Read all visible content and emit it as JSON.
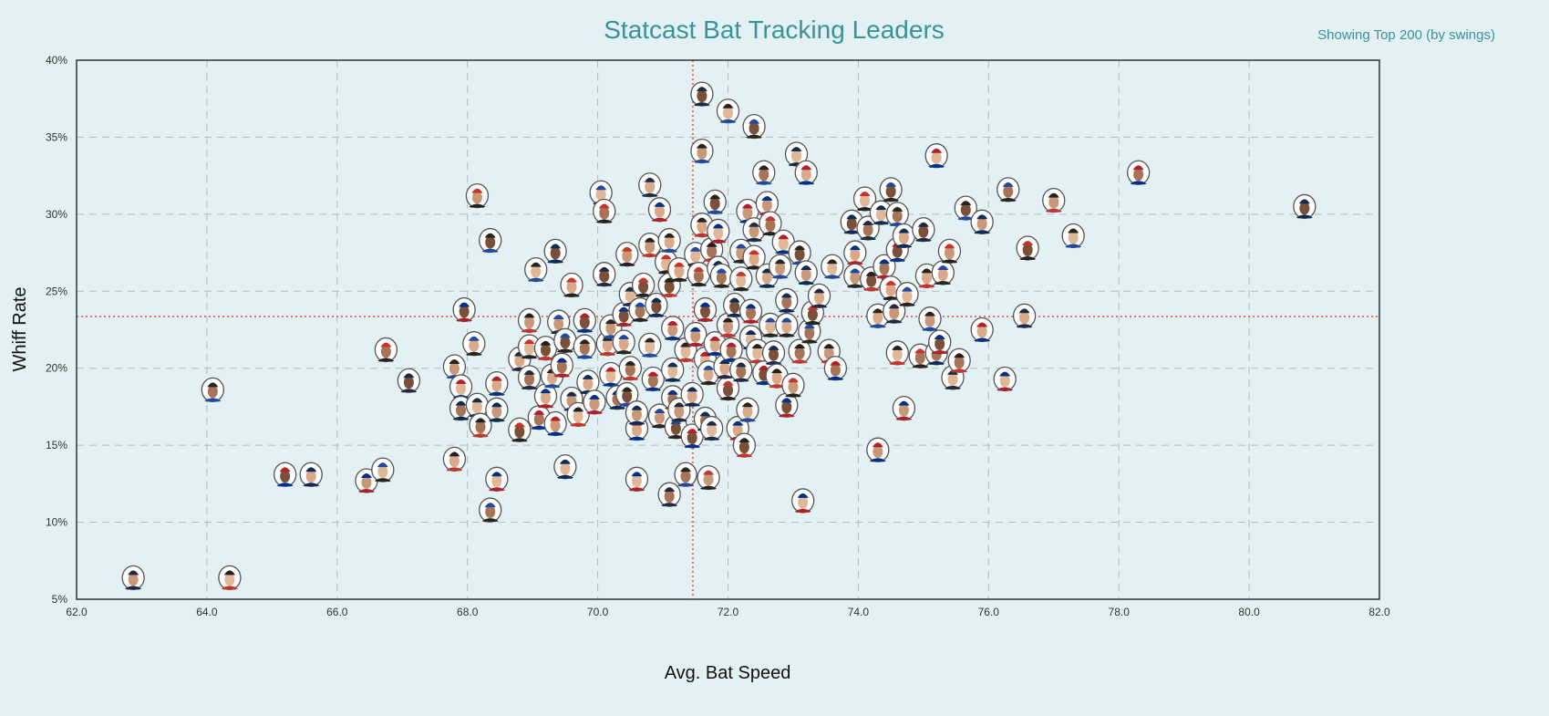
{
  "chart_data": {
    "type": "scatter",
    "title": "Statcast Bat Tracking Leaders",
    "subtitle": "Showing Top 200 (by swings)",
    "xlabel": "Avg. Bat Speed",
    "ylabel": "Whiff Rate",
    "xlim": [
      62,
      82
    ],
    "ylim": [
      5,
      40
    ],
    "x_ticks": [
      "62.0",
      "64.0",
      "66.0",
      "68.0",
      "70.0",
      "72.0",
      "74.0",
      "76.0",
      "78.0",
      "80.0",
      "82.0"
    ],
    "y_ticks": [
      "5%",
      "10%",
      "15%",
      "20%",
      "25%",
      "30%",
      "35%",
      "40%"
    ],
    "grid": true,
    "reference_lines": {
      "x_mean": 71.46,
      "y_mean": 23.36,
      "color": "#f07070",
      "style": "dotted"
    },
    "marker": "player-headshot",
    "points": [
      [
        62.87,
        6.4
      ],
      [
        64.35,
        6.4
      ],
      [
        64.09,
        18.6
      ],
      [
        65.2,
        13.1
      ],
      [
        65.6,
        13.1
      ],
      [
        66.45,
        12.7
      ],
      [
        66.7,
        13.4
      ],
      [
        66.75,
        21.2
      ],
      [
        67.1,
        19.2
      ],
      [
        67.8,
        14.1
      ],
      [
        67.8,
        20.1
      ],
      [
        67.9,
        18.8
      ],
      [
        67.9,
        17.4
      ],
      [
        67.95,
        23.8
      ],
      [
        68.1,
        21.6
      ],
      [
        68.15,
        31.2
      ],
      [
        68.15,
        17.6
      ],
      [
        68.2,
        16.3
      ],
      [
        68.35,
        28.3
      ],
      [
        68.45,
        19.0
      ],
      [
        68.45,
        17.3
      ],
      [
        68.45,
        12.8
      ],
      [
        68.35,
        10.8
      ],
      [
        68.8,
        16.0
      ],
      [
        68.8,
        20.6
      ],
      [
        68.95,
        23.1
      ],
      [
        69.05,
        26.4
      ],
      [
        69.1,
        16.8
      ],
      [
        69.35,
        27.6
      ],
      [
        69.2,
        18.2
      ],
      [
        69.4,
        23.0
      ],
      [
        68.95,
        21.4
      ],
      [
        68.95,
        19.4
      ],
      [
        69.2,
        21.3
      ],
      [
        69.3,
        19.5
      ],
      [
        69.35,
        16.4
      ],
      [
        69.5,
        13.6
      ],
      [
        69.45,
        20.2
      ],
      [
        69.5,
        21.8
      ],
      [
        69.6,
        25.4
      ],
      [
        69.6,
        18.0
      ],
      [
        69.7,
        17.0
      ],
      [
        69.8,
        21.4
      ],
      [
        69.8,
        23.1
      ],
      [
        69.85,
        19.1
      ],
      [
        69.95,
        17.8
      ],
      [
        70.05,
        31.4
      ],
      [
        70.1,
        30.2
      ],
      [
        70.1,
        26.1
      ],
      [
        70.15,
        21.6
      ],
      [
        70.2,
        22.7
      ],
      [
        70.2,
        19.6
      ],
      [
        70.3,
        18.1
      ],
      [
        70.4,
        23.5
      ],
      [
        70.4,
        21.7
      ],
      [
        70.45,
        27.4
      ],
      [
        70.5,
        24.8
      ],
      [
        70.5,
        20.0
      ],
      [
        70.45,
        18.3
      ],
      [
        70.6,
        16.1
      ],
      [
        70.6,
        17.1
      ],
      [
        70.6,
        12.8
      ],
      [
        70.65,
        23.8
      ],
      [
        70.7,
        25.4
      ],
      [
        70.8,
        31.9
      ],
      [
        70.8,
        28.0
      ],
      [
        70.8,
        21.5
      ],
      [
        70.85,
        19.3
      ],
      [
        70.9,
        24.1
      ],
      [
        70.95,
        30.3
      ],
      [
        70.95,
        16.9
      ],
      [
        71.05,
        26.9
      ],
      [
        71.1,
        11.8
      ],
      [
        71.1,
        25.4
      ],
      [
        71.1,
        28.3
      ],
      [
        71.15,
        22.6
      ],
      [
        71.15,
        19.9
      ],
      [
        71.15,
        18.1
      ],
      [
        71.2,
        16.2
      ],
      [
        71.25,
        26.4
      ],
      [
        71.25,
        17.3
      ],
      [
        71.35,
        21.2
      ],
      [
        71.35,
        13.1
      ],
      [
        71.45,
        15.6
      ],
      [
        71.45,
        18.3
      ],
      [
        71.5,
        22.2
      ],
      [
        71.5,
        27.4
      ],
      [
        71.55,
        26.1
      ],
      [
        71.6,
        37.8
      ],
      [
        71.6,
        29.3
      ],
      [
        71.6,
        34.1
      ],
      [
        71.65,
        20.6
      ],
      [
        71.65,
        16.7
      ],
      [
        71.65,
        23.8
      ],
      [
        71.7,
        19.7
      ],
      [
        71.7,
        12.9
      ],
      [
        71.75,
        16.1
      ],
      [
        71.75,
        27.7
      ],
      [
        71.8,
        30.8
      ],
      [
        71.8,
        21.6
      ],
      [
        71.85,
        26.5
      ],
      [
        71.85,
        28.9
      ],
      [
        71.9,
        26.0
      ],
      [
        72.0,
        18.7
      ],
      [
        71.95,
        20.1
      ],
      [
        72.0,
        22.8
      ],
      [
        72.0,
        36.7
      ],
      [
        72.05,
        21.2
      ],
      [
        72.1,
        24.1
      ],
      [
        72.15,
        16.1
      ],
      [
        72.2,
        27.6
      ],
      [
        72.2,
        25.8
      ],
      [
        72.2,
        19.9
      ],
      [
        72.25,
        15.0
      ],
      [
        72.3,
        17.3
      ],
      [
        72.3,
        30.2
      ],
      [
        72.35,
        22.0
      ],
      [
        72.35,
        23.7
      ],
      [
        72.4,
        35.7
      ],
      [
        72.4,
        27.2
      ],
      [
        72.4,
        29.0
      ],
      [
        72.45,
        21.1
      ],
      [
        72.55,
        32.7
      ],
      [
        72.55,
        19.7
      ],
      [
        72.6,
        26.0
      ],
      [
        72.6,
        30.7
      ],
      [
        72.65,
        22.8
      ],
      [
        72.65,
        29.4
      ],
      [
        72.7,
        21.0
      ],
      [
        72.75,
        19.5
      ],
      [
        72.8,
        26.6
      ],
      [
        72.85,
        28.2
      ],
      [
        72.9,
        24.4
      ],
      [
        72.9,
        17.6
      ],
      [
        72.9,
        22.8
      ],
      [
        73.0,
        18.9
      ],
      [
        73.05,
        33.9
      ],
      [
        73.1,
        21.1
      ],
      [
        73.1,
        27.5
      ],
      [
        73.2,
        32.7
      ],
      [
        73.2,
        26.2
      ],
      [
        73.15,
        11.4
      ],
      [
        73.25,
        22.4
      ],
      [
        73.3,
        23.6
      ],
      [
        73.4,
        24.7
      ],
      [
        73.55,
        21.1
      ],
      [
        73.6,
        26.6
      ],
      [
        73.65,
        20.0
      ],
      [
        73.9,
        29.5
      ],
      [
        73.95,
        27.5
      ],
      [
        73.95,
        26.0
      ],
      [
        74.1,
        31.0
      ],
      [
        74.15,
        29.1
      ],
      [
        74.2,
        25.8
      ],
      [
        74.3,
        23.4
      ],
      [
        74.3,
        14.7
      ],
      [
        74.35,
        30.1
      ],
      [
        74.4,
        26.6
      ],
      [
        74.5,
        31.6
      ],
      [
        74.5,
        25.2
      ],
      [
        74.55,
        23.7
      ],
      [
        74.6,
        21.0
      ],
      [
        74.6,
        30.0
      ],
      [
        74.6,
        27.7
      ],
      [
        74.7,
        28.6
      ],
      [
        74.7,
        17.4
      ],
      [
        74.75,
        24.8
      ],
      [
        74.95,
        20.8
      ],
      [
        75.0,
        29.0
      ],
      [
        75.05,
        26.0
      ],
      [
        75.1,
        23.2
      ],
      [
        75.2,
        33.8
      ],
      [
        75.2,
        21.0
      ],
      [
        75.25,
        21.7
      ],
      [
        75.3,
        26.2
      ],
      [
        75.4,
        27.6
      ],
      [
        75.45,
        19.4
      ],
      [
        75.55,
        20.5
      ],
      [
        75.65,
        30.4
      ],
      [
        75.9,
        22.5
      ],
      [
        75.9,
        29.5
      ],
      [
        76.25,
        19.3
      ],
      [
        76.3,
        31.6
      ],
      [
        76.6,
        27.8
      ],
      [
        76.55,
        23.4
      ],
      [
        77.0,
        30.9
      ],
      [
        77.3,
        28.6
      ],
      [
        78.3,
        32.7
      ],
      [
        80.85,
        30.5
      ]
    ]
  },
  "colors": {
    "background": "#e3f1f5",
    "title": "#3a9397",
    "reference": "#f07070",
    "grid": "#b5bdb8"
  }
}
